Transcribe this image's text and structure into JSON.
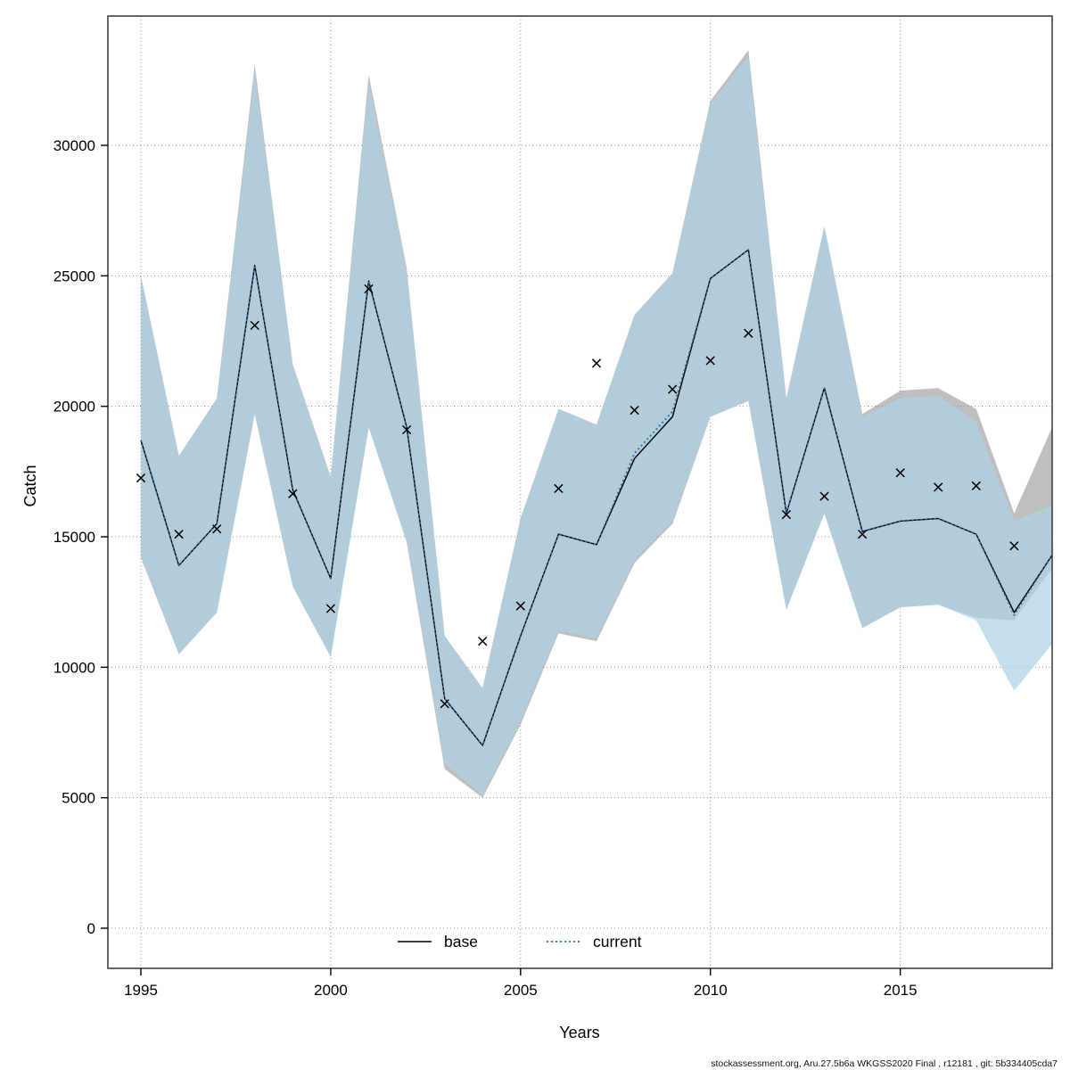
{
  "figure": {
    "xlabel": "Years",
    "ylabel": "Catch",
    "footer": "stockassessment.org, Aru.27.5b6a WKGSS2020 Final , r12181 , git: 5b334405cda7",
    "legend": {
      "base_label": "base",
      "current_label": "current"
    }
  },
  "chart_data": {
    "type": "line",
    "title": "",
    "xlabel": "Years",
    "ylabel": "Catch",
    "grid": "dotted",
    "legend_position": "bottom-center-inside",
    "xlim": [
      1994.1,
      2019.05
    ],
    "ylim": [
      -1540,
      34950
    ],
    "x_ticks": [
      1995,
      2000,
      2005,
      2010,
      2015
    ],
    "y_ticks": [
      0,
      5000,
      10000,
      15000,
      20000,
      25000,
      30000
    ],
    "years": [
      1995,
      1996,
      1997,
      1998,
      1999,
      2000,
      2001,
      2002,
      2003,
      2004,
      2005,
      2006,
      2007,
      2008,
      2009,
      2010,
      2011,
      2012,
      2013,
      2014,
      2015,
      2016,
      2017,
      2018,
      2019
    ],
    "series": [
      {
        "name": "base",
        "style": "solid",
        "color": "#000000",
        "values": [
          18700,
          13900,
          15500,
          25400,
          16800,
          13400,
          24800,
          19200,
          8800,
          7000,
          11200,
          15100,
          14700,
          18000,
          19600,
          24900,
          26000,
          15900,
          20700,
          15200,
          15600,
          15700,
          15100,
          12100,
          14300
        ]
      },
      {
        "name": "current",
        "style": "dotted",
        "color": "#2e6da0",
        "values": [
          18700,
          13900,
          15500,
          25400,
          16800,
          13400,
          24800,
          19200,
          8800,
          7000,
          11200,
          15100,
          14700,
          18200,
          19800,
          24900,
          26000,
          15900,
          20700,
          15200,
          15600,
          15700,
          15100,
          12000,
          14300
        ]
      }
    ],
    "bands": [
      {
        "name": "base-ci",
        "color": "#8a8a8a",
        "opacity": 0.55,
        "years": [
          1995,
          1996,
          1997,
          1998,
          1999,
          2000,
          2001,
          2002,
          2003,
          2004,
          2005,
          2006,
          2007,
          2008,
          2009,
          2010,
          2011,
          2012,
          2013,
          2014,
          2015,
          2016,
          2017,
          2018,
          2019
        ],
        "upper": [
          25000,
          18100,
          20300,
          33100,
          21600,
          17300,
          32700,
          25300,
          11200,
          9200,
          15700,
          19900,
          19300,
          23500,
          25100,
          31700,
          33650,
          20300,
          26900,
          19700,
          20600,
          20700,
          19900,
          15900,
          19200
        ],
        "lower": [
          14200,
          10500,
          12100,
          19700,
          13100,
          10400,
          19200,
          14800,
          6100,
          5000,
          7800,
          11300,
          11000,
          14000,
          15500,
          19600,
          20200,
          12200,
          15900,
          11500,
          12300,
          12400,
          11900,
          11800,
          13800
        ]
      },
      {
        "name": "current-ci",
        "color": "#aed1e6",
        "opacity": 0.7,
        "years": [
          1995,
          1996,
          1997,
          1998,
          1999,
          2000,
          2001,
          2002,
          2003,
          2004,
          2005,
          2006,
          2007,
          2008,
          2009,
          2010,
          2011,
          2012,
          2013,
          2014,
          2015,
          2016,
          2017,
          2018,
          2019
        ],
        "upper": [
          25000,
          18100,
          20300,
          32800,
          21600,
          17300,
          32400,
          25200,
          11200,
          9200,
          15700,
          19900,
          19300,
          23500,
          25100,
          31600,
          33400,
          20300,
          26900,
          19600,
          20300,
          20400,
          19400,
          15600,
          16200
        ],
        "lower": [
          14200,
          10500,
          12100,
          19700,
          13100,
          10400,
          19200,
          14800,
          6300,
          5100,
          7900,
          11400,
          11100,
          14100,
          15600,
          19600,
          20200,
          12200,
          15900,
          11500,
          12300,
          12400,
          11800,
          9100,
          10900
        ]
      }
    ],
    "observations": {
      "marker": "x",
      "color": "#000000",
      "years": [
        1995,
        1996,
        1997,
        1998,
        1999,
        2000,
        2001,
        2002,
        2003,
        2004,
        2005,
        2006,
        2007,
        2008,
        2009,
        2010,
        2011,
        2012,
        2013,
        2014,
        2015,
        2016,
        2017,
        2018
      ],
      "values": [
        17250,
        15100,
        15300,
        23100,
        16650,
        12250,
        24500,
        19100,
        8600,
        11000,
        12350,
        16850,
        21650,
        19850,
        20650,
        21750,
        22800,
        15850,
        16550,
        15100,
        17450,
        16900,
        16950,
        14650
      ]
    }
  }
}
